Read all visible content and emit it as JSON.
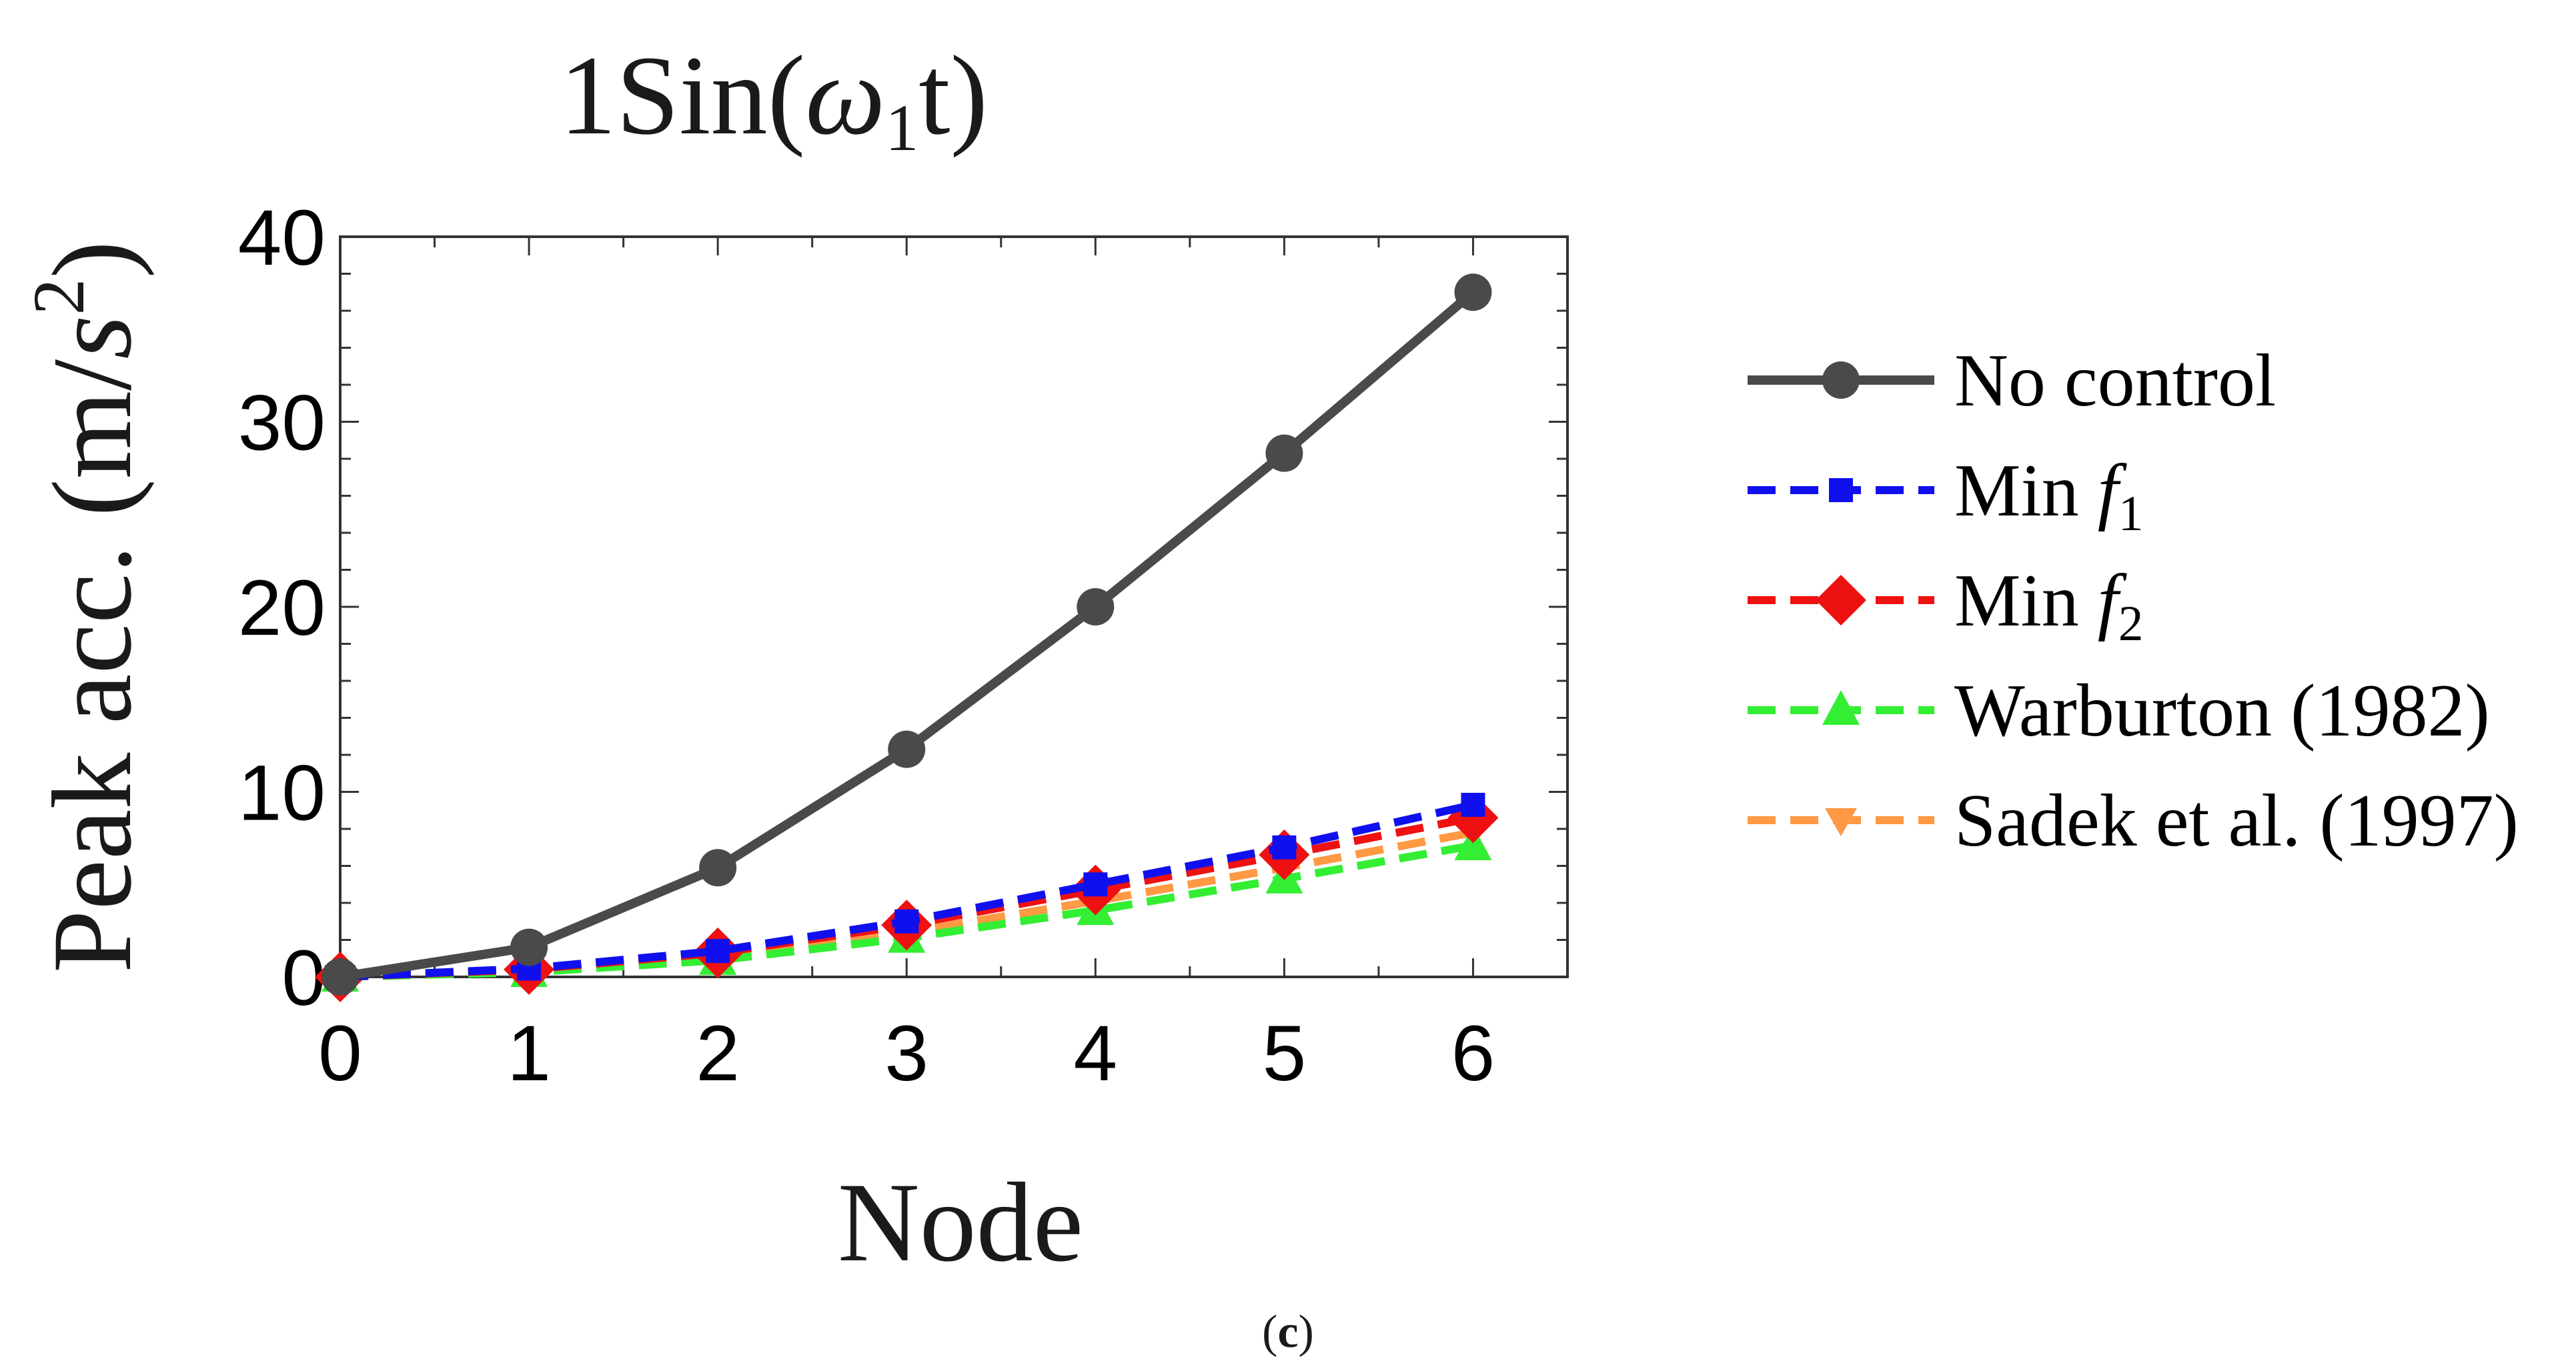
{
  "chart_data": {
    "type": "line",
    "title": "1Sin(ω₁t)",
    "xlabel": "Node",
    "ylabel": "Peak acc. (m/s²)",
    "xlim": [
      0,
      6.5
    ],
    "ylim": [
      0,
      40
    ],
    "xticks": [
      0,
      1,
      2,
      3,
      4,
      5,
      6
    ],
    "yticks": [
      0,
      10,
      20,
      30,
      40
    ],
    "x": [
      0,
      1,
      2,
      3,
      4,
      5,
      6
    ],
    "legend_position": "right",
    "series": [
      {
        "name": "No control",
        "color": "#4a4a4a",
        "dash": "solid",
        "marker": "circle",
        "values": [
          0,
          1.6,
          5.9,
          12.3,
          20.0,
          28.3,
          37.0
        ]
      },
      {
        "name": "Min f1",
        "color": "#1010ee",
        "dash": "dashed",
        "marker": "square",
        "values": [
          0,
          0.45,
          1.4,
          3.0,
          5.0,
          7.0,
          9.3
        ]
      },
      {
        "name": "Min f2",
        "color": "#ee1111",
        "dash": "dashed",
        "marker": "diamond",
        "values": [
          0,
          0.4,
          1.3,
          2.8,
          4.7,
          6.6,
          8.6
        ]
      },
      {
        "name": "Warburton (1982)",
        "color": "#33ee33",
        "dash": "dashed",
        "marker": "triangle-up",
        "values": [
          0,
          0.25,
          0.9,
          2.1,
          3.6,
          5.3,
          7.1
        ]
      },
      {
        "name": "Sadek et al. (1997)",
        "color": "#ff9944",
        "dash": "dashed",
        "marker": "triangle-down",
        "values": [
          0,
          0.3,
          1.1,
          2.4,
          4.1,
          5.9,
          7.8
        ]
      }
    ],
    "legend_labels": [
      {
        "main": "No control",
        "italic": "",
        "sub": ""
      },
      {
        "main": "Min ",
        "italic": "f",
        "sub": "1"
      },
      {
        "main": "Min ",
        "italic": "f",
        "sub": "2"
      },
      {
        "main": "Warburton (1982)",
        "italic": "",
        "sub": ""
      },
      {
        "main": "Sadek et al. (1997)",
        "italic": "",
        "sub": ""
      }
    ],
    "caption": "(c)"
  }
}
